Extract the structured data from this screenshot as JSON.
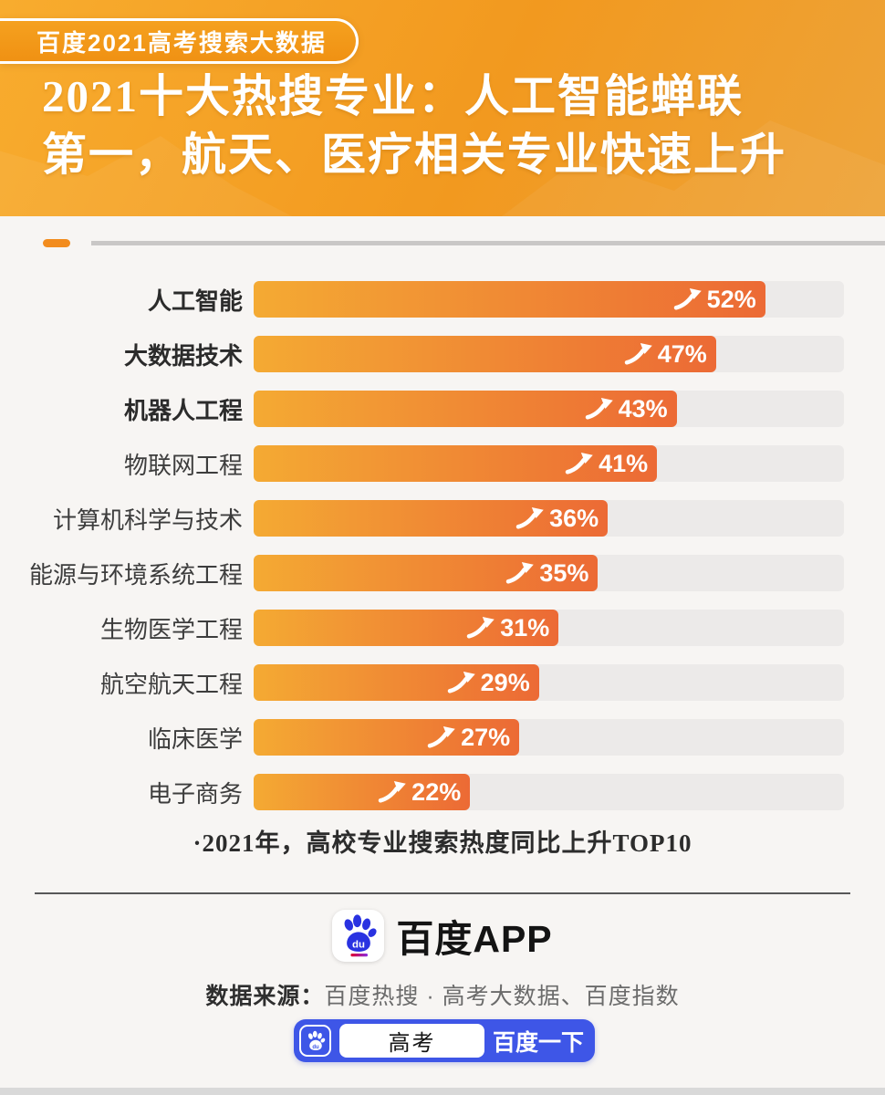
{
  "header": {
    "badge_label": "百度2021高考搜索大数据",
    "title_line1": "2021十大热搜专业：人工智能蝉联",
    "title_line2": "第一，航天、医疗相关专业快速上升",
    "bg_colors": [
      "#f8ac2e",
      "#f2991f"
    ]
  },
  "chart_data": {
    "type": "bar",
    "orientation": "horizontal",
    "title": "2021十大热搜专业：人工智能蝉联第一，航天、医疗相关专业快速上升",
    "categories": [
      "人工智能",
      "大数据技术",
      "机器人工程",
      "物联网工程",
      "计算机科学与技术",
      "能源与环境系统工程",
      "生物医学工程",
      "航空航天工程",
      "临床医学",
      "电子商务"
    ],
    "values": [
      52,
      47,
      43,
      41,
      36,
      35,
      31,
      29,
      27,
      22
    ],
    "value_suffix": "%",
    "bold_rows": 3,
    "axis_max": 60,
    "grid": false,
    "legend": false,
    "rise_icon": "arrow-up-right",
    "bar_gradient": [
      "#f4aa33",
      "#ec6a35"
    ],
    "track_color": "#eceae9",
    "note": "·2021年，高校专业搜索热度同比上升TOP10"
  },
  "footer": {
    "app_name": "百度APP",
    "source_label": "数据来源：",
    "source_text": "百度热搜 · 高考大数据、百度指数",
    "search_bar": {
      "query": "高考",
      "button_label": "百度一下",
      "bar_color": "#3e56e7"
    },
    "baidu_blue": "#2932e1"
  }
}
